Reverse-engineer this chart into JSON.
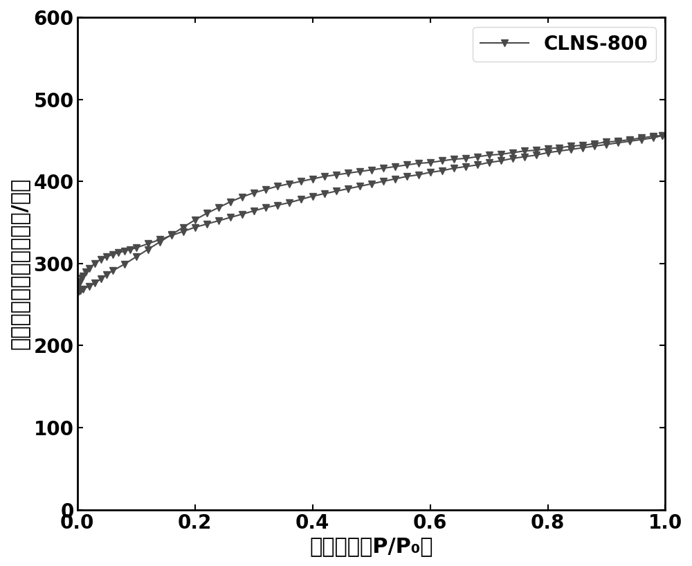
{
  "title": "",
  "xlabel": "相对压力（P/P₀）",
  "ylabel": "单位质量体积（立方厘米/克）",
  "legend_label": "CLNS-800",
  "line_color": "#4a4a4a",
  "marker": "v",
  "marker_size": 7,
  "xlim": [
    0.0,
    1.0
  ],
  "ylim": [
    0,
    600
  ],
  "yticks": [
    0,
    100,
    200,
    300,
    400,
    500,
    600
  ],
  "xticks": [
    0.0,
    0.2,
    0.4,
    0.6,
    0.8,
    1.0
  ],
  "adsorption_x": [
    0.001,
    0.003,
    0.005,
    0.008,
    0.01,
    0.015,
    0.02,
    0.03,
    0.04,
    0.05,
    0.06,
    0.07,
    0.08,
    0.09,
    0.1,
    0.12,
    0.14,
    0.16,
    0.18,
    0.2,
    0.22,
    0.24,
    0.26,
    0.28,
    0.3,
    0.32,
    0.34,
    0.36,
    0.38,
    0.4,
    0.42,
    0.44,
    0.46,
    0.48,
    0.5,
    0.52,
    0.54,
    0.56,
    0.58,
    0.6,
    0.62,
    0.64,
    0.66,
    0.68,
    0.7,
    0.72,
    0.74,
    0.76,
    0.78,
    0.8,
    0.82,
    0.84,
    0.86,
    0.88,
    0.9,
    0.92,
    0.94,
    0.96,
    0.98,
    0.995
  ],
  "adsorption_y": [
    272,
    275,
    278,
    282,
    285,
    290,
    294,
    300,
    305,
    308,
    311,
    313,
    315,
    317,
    319,
    324,
    329,
    334,
    339,
    344,
    348,
    352,
    356,
    360,
    364,
    368,
    371,
    374,
    378,
    382,
    385,
    388,
    391,
    394,
    397,
    400,
    403,
    406,
    408,
    411,
    413,
    416,
    418,
    420,
    423,
    425,
    428,
    430,
    432,
    435,
    437,
    439,
    441,
    443,
    445,
    447,
    449,
    451,
    453,
    456
  ],
  "desorption_x": [
    0.995,
    0.98,
    0.96,
    0.94,
    0.92,
    0.9,
    0.88,
    0.86,
    0.84,
    0.82,
    0.8,
    0.78,
    0.76,
    0.74,
    0.72,
    0.7,
    0.68,
    0.66,
    0.64,
    0.62,
    0.6,
    0.58,
    0.56,
    0.54,
    0.52,
    0.5,
    0.48,
    0.46,
    0.44,
    0.42,
    0.4,
    0.38,
    0.36,
    0.34,
    0.32,
    0.3,
    0.28,
    0.26,
    0.24,
    0.22,
    0.2,
    0.18,
    0.16,
    0.14,
    0.12,
    0.1,
    0.08,
    0.06,
    0.05,
    0.04,
    0.03,
    0.02,
    0.01,
    0.005,
    0.003,
    0.001
  ],
  "desorption_y": [
    456,
    455,
    453,
    451,
    449,
    448,
    446,
    444,
    443,
    441,
    440,
    438,
    437,
    435,
    433,
    432,
    430,
    428,
    427,
    425,
    423,
    422,
    420,
    418,
    416,
    414,
    412,
    410,
    408,
    406,
    403,
    400,
    397,
    394,
    390,
    386,
    381,
    375,
    368,
    361,
    353,
    344,
    335,
    326,
    317,
    308,
    299,
    291,
    286,
    281,
    276,
    272,
    269,
    267,
    266,
    265
  ],
  "background_color": "#ffffff",
  "tick_fontsize": 20,
  "label_fontsize": 22,
  "legend_fontsize": 20,
  "tick_fontweight": "bold",
  "label_fontweight": "bold"
}
